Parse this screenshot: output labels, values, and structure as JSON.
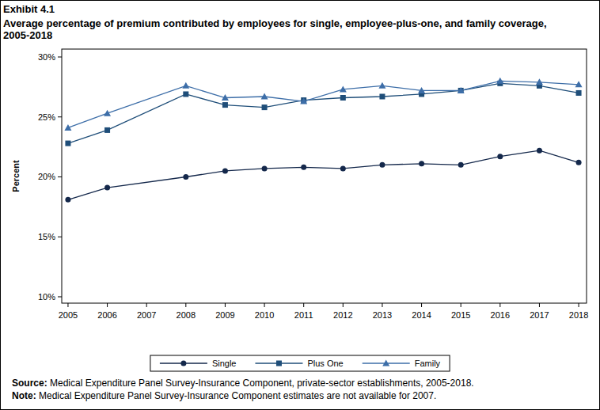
{
  "chart_data": {
    "type": "line",
    "title": "Exhibit 4.1",
    "subtitle": "Average percentage of premium contributed by employees for single, employee-plus-one, and family coverage, 2005-2018",
    "y_label": "Percent",
    "source_label": "Source:",
    "source": "Medical Expenditure Panel Survey-Insurance Component, private-sector establishments, 2005-2018.",
    "note_label": "Note:",
    "note": "Medical Expenditure Panel Survey-Insurance Component estimates are not available for 2007.",
    "x": [
      2005,
      2006,
      2008,
      2009,
      2010,
      2011,
      2012,
      2013,
      2014,
      2015,
      2016,
      2017,
      2018
    ],
    "xlim": [
      2004.84,
      2018.2
    ],
    "xticks": [
      2005,
      2006,
      2007,
      2008,
      2009,
      2010,
      2011,
      2012,
      2013,
      2014,
      2015,
      2016,
      2017,
      2018
    ],
    "ylim": [
      9.47,
      30.66
    ],
    "yticks": [
      {
        "value": 10,
        "label": "10%"
      },
      {
        "value": 15,
        "label": "15%"
      },
      {
        "value": 20,
        "label": "20%"
      },
      {
        "value": 25,
        "label": "25%"
      },
      {
        "value": 30,
        "label": "30%"
      }
    ],
    "grid": false,
    "legend": "bottom",
    "series": [
      {
        "name": "Single",
        "color": "#14284b",
        "marker": "circle",
        "values": [
          18.1,
          19.1,
          20.0,
          20.5,
          20.7,
          20.8,
          20.7,
          21.0,
          21.1,
          21.0,
          21.7,
          22.2,
          21.2
        ]
      },
      {
        "name": "Plus One",
        "color": "#1f4e79",
        "marker": "square",
        "values": [
          22.8,
          23.9,
          26.9,
          26.0,
          25.8,
          26.4,
          26.6,
          26.7,
          26.9,
          27.2,
          27.8,
          27.6,
          27.0
        ]
      },
      {
        "name": "Family",
        "color": "#3d6ea8",
        "marker": "triangle",
        "values": [
          24.1,
          25.3,
          27.6,
          26.6,
          26.7,
          26.3,
          27.3,
          27.6,
          27.2,
          27.2,
          28.0,
          27.9,
          27.7
        ]
      }
    ]
  }
}
